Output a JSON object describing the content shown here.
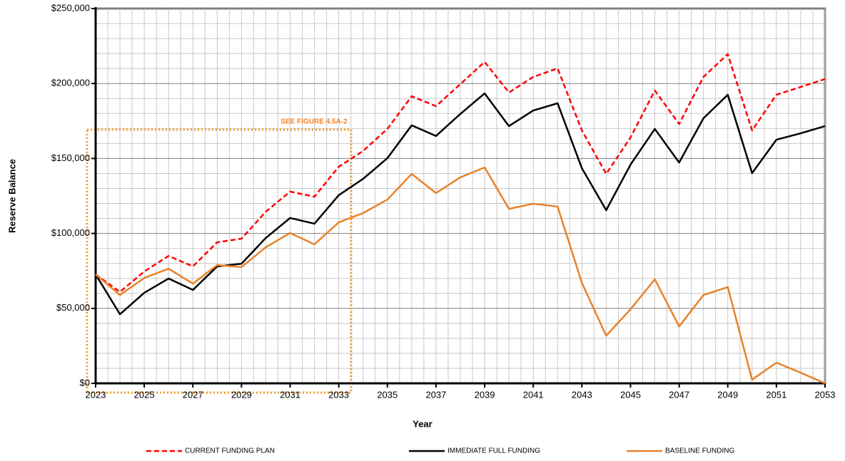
{
  "chart_data": {
    "type": "line",
    "x_label": "Year",
    "y_label": "Reserve Balance",
    "annotation": "SEE FIGURE 4.5A-2",
    "x": [
      2023,
      2024,
      2025,
      2026,
      2027,
      2028,
      2029,
      2030,
      2031,
      2032,
      2033,
      2034,
      2035,
      2036,
      2037,
      2038,
      2039,
      2040,
      2041,
      2042,
      2043,
      2044,
      2045,
      2046,
      2047,
      2048,
      2049,
      2050,
      2051,
      2052,
      2053
    ],
    "xlim": [
      2023,
      2053
    ],
    "xticks": [
      2023,
      2025,
      2027,
      2029,
      2031,
      2033,
      2035,
      2037,
      2039,
      2041,
      2043,
      2045,
      2047,
      2049,
      2051,
      2053
    ],
    "ylim": [
      0,
      250000
    ],
    "yticks": [
      {
        "value": 0,
        "label": "$0"
      },
      {
        "value": 50000,
        "label": "$50,000"
      },
      {
        "value": 100000,
        "label": "$100,000"
      },
      {
        "value": 150000,
        "label": "$150,000"
      },
      {
        "value": 200000,
        "label": "$200,000"
      },
      {
        "value": 250000,
        "label": "$250,000"
      }
    ],
    "grid": true,
    "legend": "bottom",
    "series": [
      {
        "name": "CURRENT FUNDING PLAN",
        "color": "#ff0000",
        "dash": true,
        "values": [
          72700,
          61000,
          74600,
          85000,
          78000,
          94100,
          96500,
          114500,
          127900,
          124500,
          144500,
          155000,
          169700,
          191500,
          184900,
          199600,
          214400,
          194000,
          204400,
          210100,
          168700,
          139700,
          164000,
          195300,
          173000,
          204400,
          219600,
          168700,
          192500,
          197700,
          203000
        ]
      },
      {
        "name": "IMMEDIATE FULL FUNDING",
        "color": "#000000",
        "dash": false,
        "values": [
          72700,
          46100,
          60400,
          69900,
          62300,
          78000,
          79800,
          97000,
          110300,
          106500,
          125500,
          136400,
          150200,
          172100,
          165000,
          179700,
          193400,
          171600,
          182000,
          186800,
          143500,
          115500,
          145900,
          169700,
          147300,
          176800,
          192500,
          140200,
          162500,
          166800,
          171600
        ]
      },
      {
        "name": "BASELINE FUNDING",
        "color": "#e8822a",
        "dash": false,
        "values": [
          72700,
          58900,
          70300,
          76500,
          66500,
          78900,
          77500,
          90800,
          100300,
          92700,
          107400,
          113600,
          122600,
          139700,
          126900,
          137400,
          144000,
          116400,
          119800,
          117900,
          67000,
          31800,
          49400,
          69400,
          38000,
          58900,
          64200,
          2400,
          13800,
          7100,
          0
        ]
      }
    ]
  }
}
